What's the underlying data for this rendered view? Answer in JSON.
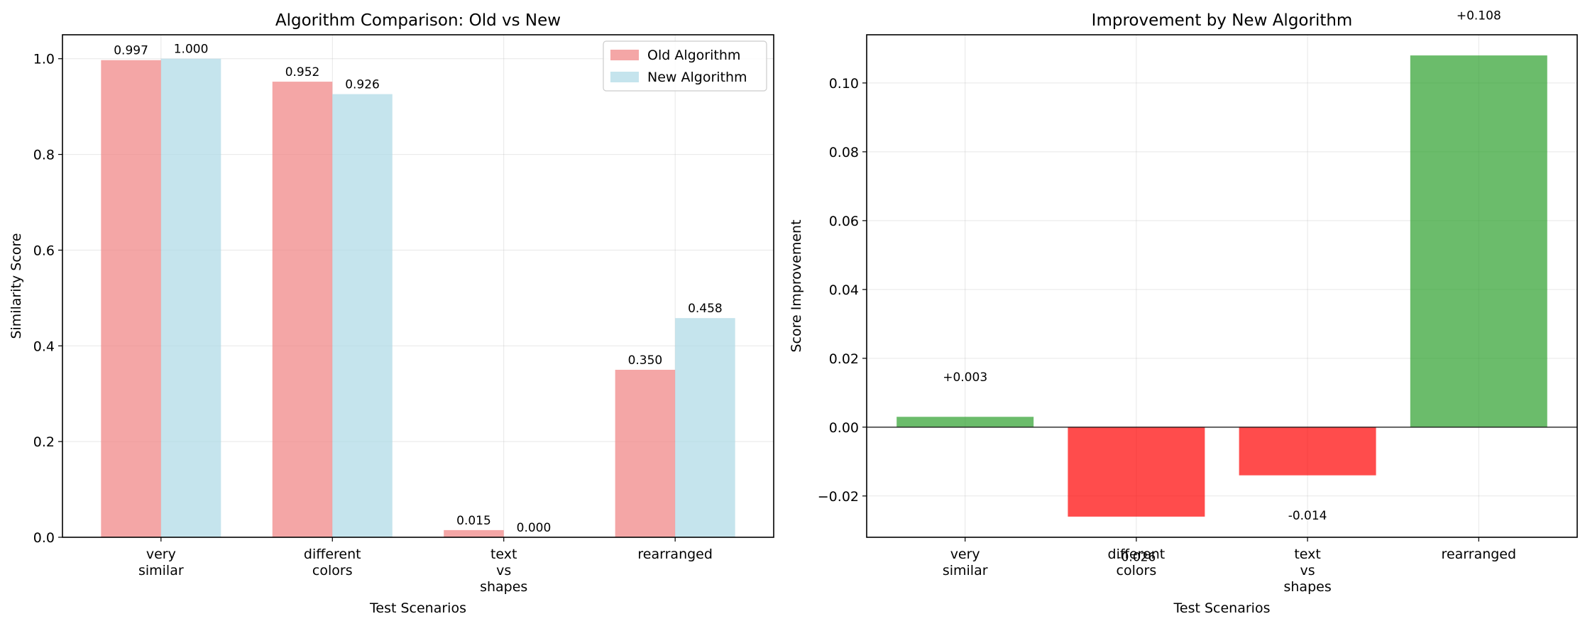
{
  "chart_data": [
    {
      "type": "bar",
      "title": "Algorithm Comparison: Old vs New",
      "xlabel": "Test Scenarios",
      "ylabel": "Similarity Score",
      "categories": [
        [
          "very",
          "similar"
        ],
        [
          "different",
          "colors"
        ],
        [
          "text",
          "vs",
          "shapes"
        ],
        [
          "rearranged"
        ]
      ],
      "series": [
        {
          "name": "Old Algorithm",
          "values": [
            0.997,
            0.952,
            0.015,
            0.35
          ],
          "labels": [
            "0.997",
            "0.952",
            "0.015",
            "0.350"
          ],
          "color": "#f08080"
        },
        {
          "name": "New Algorithm",
          "values": [
            1.0,
            0.926,
            0.0,
            0.458
          ],
          "labels": [
            "1.000",
            "0.926",
            "0.000",
            "0.458"
          ],
          "color": "#add8e6"
        }
      ],
      "ylim": [
        0,
        1.05
      ],
      "yticks": [
        0.0,
        0.2,
        0.4,
        0.6,
        0.8,
        1.0
      ],
      "ytick_labels": [
        "0.0",
        "0.2",
        "0.4",
        "0.6",
        "0.8",
        "1.0"
      ],
      "grid": true,
      "legend": "upper right"
    },
    {
      "type": "bar",
      "title": "Improvement by New Algorithm",
      "xlabel": "Test Scenarios",
      "ylabel": "Score Improvement",
      "categories": [
        [
          "very",
          "similar"
        ],
        [
          "different",
          "colors"
        ],
        [
          "text",
          "vs",
          "shapes"
        ],
        [
          "rearranged"
        ]
      ],
      "values": [
        0.003,
        -0.026,
        -0.014,
        0.108
      ],
      "labels": [
        "+0.003",
        "-0.026",
        "-0.014",
        "+0.108"
      ],
      "colors": [
        "#2ca02c",
        "#ff0000",
        "#ff0000",
        "#2ca02c"
      ],
      "ylim": [
        -0.032,
        0.114
      ],
      "yticks": [
        -0.02,
        0.0,
        0.02,
        0.04,
        0.06,
        0.08,
        0.1
      ],
      "ytick_labels": [
        "−0.02",
        "0.00",
        "0.02",
        "0.04",
        "0.06",
        "0.08",
        "0.10"
      ],
      "grid": true,
      "zero_line": true
    }
  ]
}
